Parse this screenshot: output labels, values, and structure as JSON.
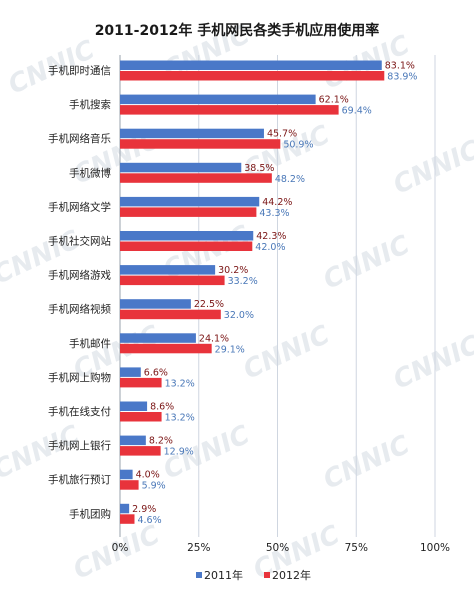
{
  "chart_data": {
    "type": "bar",
    "orientation": "horizontal",
    "title": "2011-2012年 手机网民各类手机应用使用率",
    "categories": [
      "手机即时通信",
      "手机搜索",
      "手机网络音乐",
      "手机微博",
      "手机网络文学",
      "手机社交网站",
      "手机网络游戏",
      "手机网络视频",
      "手机邮件",
      "手机网上购物",
      "手机在线支付",
      "手机网上银行",
      "手机旅行预订",
      "手机团购"
    ],
    "series": [
      {
        "name": "2011年",
        "color": "#4a78c8",
        "values": [
          83.1,
          62.1,
          45.7,
          38.5,
          44.2,
          42.3,
          30.2,
          22.5,
          24.1,
          6.6,
          8.6,
          8.2,
          4.0,
          2.9
        ]
      },
      {
        "name": "2012年",
        "color": "#e8333b",
        "values": [
          83.9,
          69.4,
          50.9,
          48.2,
          43.3,
          42.0,
          33.2,
          32.0,
          29.1,
          13.2,
          13.2,
          12.9,
          5.9,
          4.6
        ]
      }
    ],
    "value_labels": {
      "2011年": [
        "83.1%",
        "62.1%",
        "45.7%",
        "38.5%",
        "44.2%",
        "42.3%",
        "30.2%",
        "22.5%",
        "24.1%",
        "6.6%",
        "8.6%",
        "8.2%",
        "4.0%",
        "2.9%"
      ],
      "2012年": [
        "83.9%",
        "69.4%",
        "50.9%",
        "48.2%",
        "43.3%",
        "42.0%",
        "33.2%",
        "32.0%",
        "29.1%",
        "13.2%",
        "13.2%",
        "12.9%",
        "5.9%",
        "4.6%"
      ]
    },
    "xlim": [
      0,
      100
    ],
    "x_ticks": [
      "0%",
      "25%",
      "50%",
      "75%",
      "100%"
    ],
    "x_tick_values": [
      0,
      25,
      50,
      75,
      100
    ],
    "grid": true,
    "legend_position": "bottom-center",
    "watermark": "CNNIC"
  }
}
